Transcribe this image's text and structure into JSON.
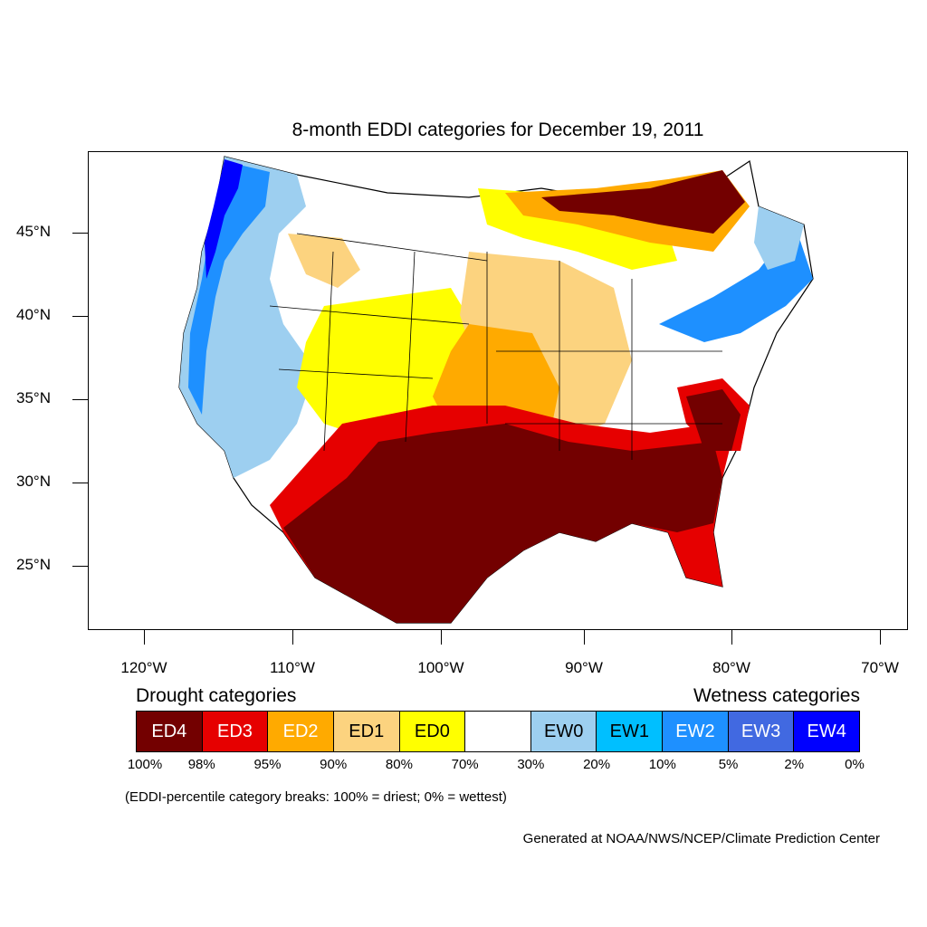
{
  "title": "8-month EDDI categories for December 19, 2011",
  "lat_labels": [
    "45°N",
    "40°N",
    "35°N",
    "30°N",
    "25°N"
  ],
  "lon_labels": [
    "120°W",
    "110°W",
    "100°W",
    "90°W",
    "80°W",
    "70°W"
  ],
  "legend": {
    "drought_heading": "Drought categories",
    "wetness_heading": "Wetness categories",
    "categories": [
      {
        "label": "ED4",
        "color": "#730000",
        "text_color": "#ffffff"
      },
      {
        "label": "ED3",
        "color": "#e60000",
        "text_color": "#ffffff"
      },
      {
        "label": "ED2",
        "color": "#ffaa00",
        "text_color": "#ffffff"
      },
      {
        "label": "ED1",
        "color": "#fcd37f",
        "text_color": "#000000"
      },
      {
        "label": "ED0",
        "color": "#ffff00",
        "text_color": "#000000"
      },
      {
        "label": "",
        "color": "#ffffff",
        "text_color": "#000000"
      },
      {
        "label": "EW0",
        "color": "#9dcff0",
        "text_color": "#000000"
      },
      {
        "label": "EW1",
        "color": "#00bfff",
        "text_color": "#000000"
      },
      {
        "label": "EW2",
        "color": "#1e90ff",
        "text_color": "#ffffff"
      },
      {
        "label": "EW3",
        "color": "#4169e1",
        "text_color": "#ffffff"
      },
      {
        "label": "EW4",
        "color": "#0000ff",
        "text_color": "#ffffff"
      }
    ],
    "breaks": [
      "100%",
      "98%",
      "95%",
      "90%",
      "80%",
      "70%",
      "30%",
      "20%",
      "10%",
      "5%",
      "2%",
      "0%"
    ],
    "note": "(EDDI-percentile category breaks: 100% = driest; 0% = wettest)"
  },
  "credit": "Generated at NOAA/NWS/NCEP/Climate Prediction Center"
}
